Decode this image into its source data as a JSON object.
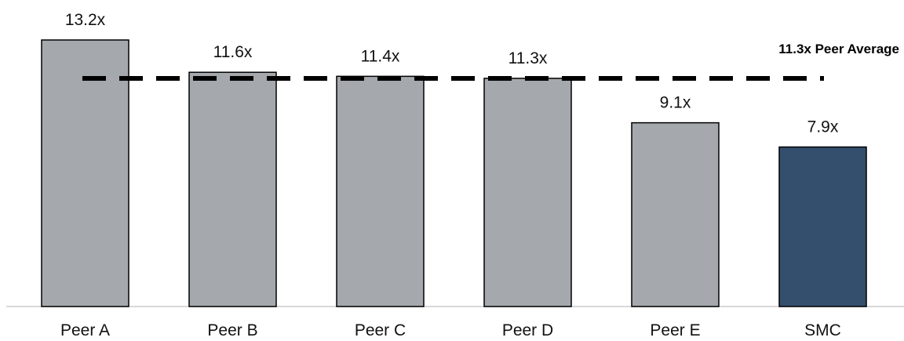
{
  "chart_data": {
    "type": "bar",
    "categories": [
      "Peer A",
      "Peer B",
      "Peer C",
      "Peer D",
      "Peer E",
      "SMC"
    ],
    "values": [
      13.2,
      11.6,
      11.4,
      11.3,
      9.1,
      7.9
    ],
    "value_labels": [
      "13.2x",
      "11.6x",
      "11.4x",
      "11.3x",
      "9.1x",
      "7.9x"
    ],
    "reference_line": {
      "value": 11.3,
      "label": "11.3x Peer Average",
      "style": "dashed"
    },
    "title": "",
    "xlabel": "",
    "ylabel": "",
    "ylim": [
      0,
      13.2
    ],
    "grid": false,
    "colors": {
      "peer_bar": "#a5a9ae",
      "highlight_bar": "#344f6d",
      "bar_outline": "#000000",
      "average_line": "#000000",
      "axis": "#d9d9d9"
    },
    "highlight_category": "SMC"
  }
}
